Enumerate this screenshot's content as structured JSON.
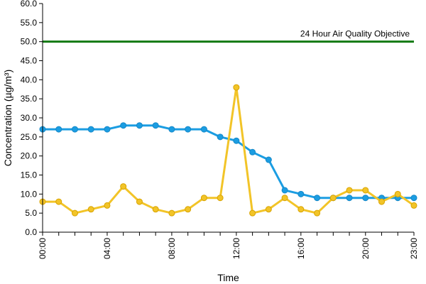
{
  "chart_data": {
    "type": "line",
    "title": "",
    "xlabel": "Time",
    "ylabel": "Concentration (µg/m³)",
    "ylim": [
      0,
      60
    ],
    "ytick_values": [
      0,
      5,
      10,
      15,
      20,
      25,
      30,
      35,
      40,
      45,
      50,
      55,
      60
    ],
    "ytick_labels": [
      "0.0",
      "5.0",
      "10.0",
      "15.0",
      "20.0",
      "25.0",
      "30.0",
      "35.0",
      "40.0",
      "45.0",
      "50.0",
      "55.0",
      "60.0"
    ],
    "xlim": [
      0,
      23
    ],
    "xtick_values": [
      0,
      4,
      8,
      12,
      16,
      20,
      23
    ],
    "xtick_labels": [
      "00:00",
      "04:00",
      "08:00",
      "12:00",
      "16:00",
      "20:00",
      "23:00"
    ],
    "x": [
      0,
      1,
      2,
      3,
      4,
      5,
      6,
      7,
      8,
      9,
      10,
      11,
      12,
      13,
      14,
      15,
      16,
      17,
      18,
      19,
      20,
      21,
      22,
      23
    ],
    "series": [
      {
        "color": "#1b9de2",
        "values": [
          27,
          27,
          27,
          27,
          27,
          28,
          28,
          28,
          27,
          27,
          27,
          25,
          24,
          21,
          19,
          11,
          10,
          9,
          9,
          9,
          9,
          9,
          9,
          9
        ]
      },
      {
        "color": "#f2c428",
        "values": [
          8,
          8,
          5,
          6,
          7,
          12,
          8,
          6,
          5,
          6,
          9,
          9,
          38,
          5,
          6,
          9,
          6,
          5,
          9,
          11,
          11,
          8,
          10,
          7
        ]
      }
    ],
    "reference_line": {
      "value": 50,
      "label": "24 Hour Air Quality Objective",
      "color": "#137a13"
    },
    "grid": false,
    "legend": "none"
  }
}
